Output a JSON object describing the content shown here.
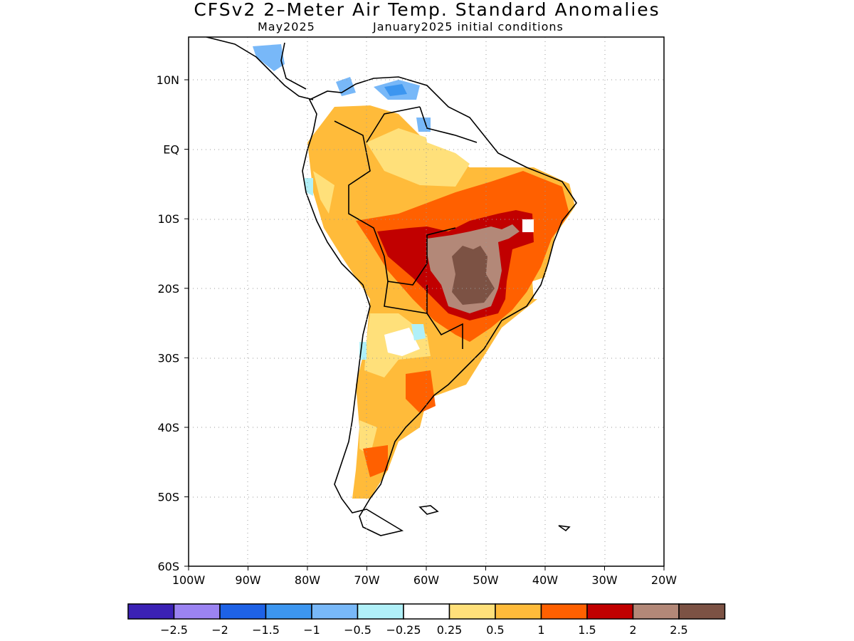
{
  "title": "CFSv2 2–Meter Air Temp. Standard Anomalies",
  "subtitle_left": "May2025",
  "subtitle_right": "January2025 initial conditions",
  "map": {
    "lon_range": [
      -100,
      -20
    ],
    "lat_range": [
      -60,
      16
    ],
    "x_ticks": [
      "100W",
      "90W",
      "80W",
      "70W",
      "60W",
      "50W",
      "40W",
      "30W",
      "20W"
    ],
    "y_ticks": [
      "10N",
      "EQ",
      "10S",
      "20S",
      "30S",
      "40S",
      "50S",
      "60S"
    ],
    "grid": "dotted"
  },
  "legend": {
    "colors": [
      "#3b21b5",
      "#9b83f2",
      "#1e62e6",
      "#3c96f0",
      "#78b8f8",
      "#b0f0f8",
      "#ffffff",
      "#ffe07a",
      "#ffbb3a",
      "#ff6000",
      "#c10000",
      "#b38878",
      "#7c5244"
    ],
    "labels": [
      "−2.5",
      "−2",
      "−1.5",
      "−1",
      "−0.5",
      "−0.25",
      "0.25",
      "0.5",
      "1",
      "1.5",
      "2",
      "2.5"
    ]
  }
}
